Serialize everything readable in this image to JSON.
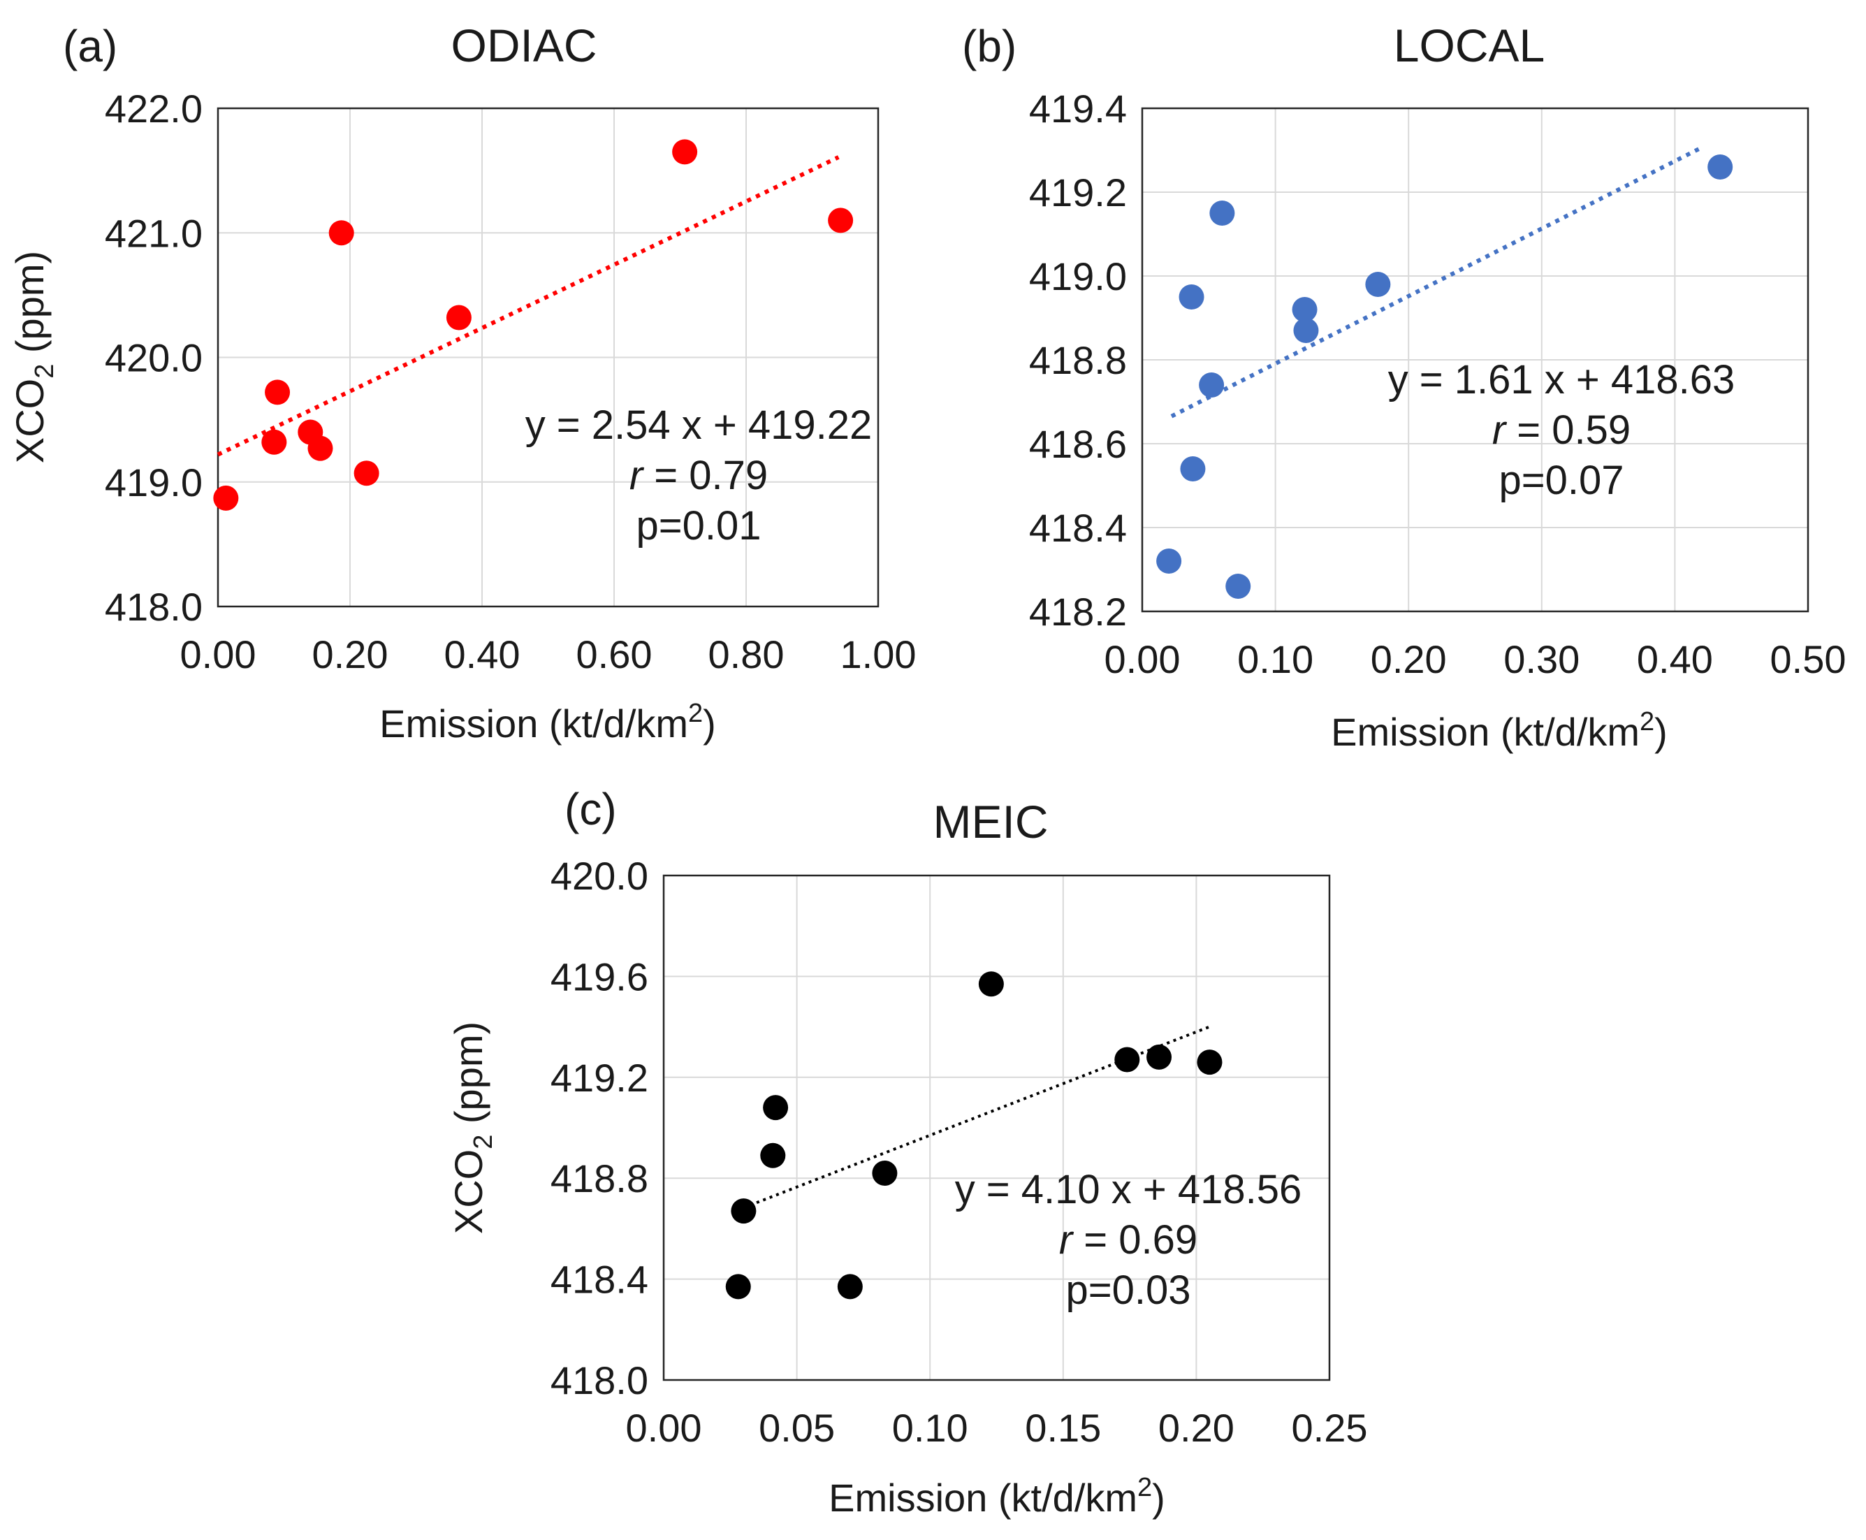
{
  "figure": {
    "panels": [
      "a",
      "b",
      "c"
    ]
  },
  "chart_data": [
    {
      "id": "a",
      "type": "scatter",
      "panel_label": "(a)",
      "title": "ODIAC",
      "xlabel_main": "Emission (kt/d/km",
      "xlabel_sup": "2",
      "xlabel_end": ")",
      "ylabel_main": "XCO",
      "ylabel_sub": "2",
      "ylabel_end": " (ppm)",
      "show_ylabel": true,
      "xlim": [
        0,
        1.0
      ],
      "ylim": [
        418.0,
        422.0
      ],
      "xticks": [
        "0.00",
        "0.20",
        "0.40",
        "0.60",
        "0.80",
        "1.00"
      ],
      "yticks": [
        "418.0",
        "419.0",
        "420.0",
        "421.0",
        "422.0"
      ],
      "grid": true,
      "color": "#ff0000",
      "points": [
        {
          "x": 0.012,
          "y": 418.87
        },
        {
          "x": 0.085,
          "y": 419.32
        },
        {
          "x": 0.09,
          "y": 419.72
        },
        {
          "x": 0.14,
          "y": 419.4
        },
        {
          "x": 0.155,
          "y": 419.27
        },
        {
          "x": 0.187,
          "y": 421.0
        },
        {
          "x": 0.225,
          "y": 419.07
        },
        {
          "x": 0.365,
          "y": 420.32
        },
        {
          "x": 0.707,
          "y": 421.65
        },
        {
          "x": 0.943,
          "y": 421.1
        }
      ],
      "trendline": {
        "slope": 2.54,
        "intercept": 419.22,
        "x_range": [
          0.0,
          0.94
        ]
      },
      "equation": "y = 2.54 x + 419.22",
      "r_symbol": "r",
      "r_value": " = 0.79",
      "p_text": "p=0.01"
    },
    {
      "id": "b",
      "type": "scatter",
      "panel_label": "(b)",
      "title": "LOCAL",
      "xlabel_main": "Emission (kt/d/km",
      "xlabel_sup": "2",
      "xlabel_end": ")",
      "show_ylabel": false,
      "xlim": [
        0,
        0.5
      ],
      "ylim": [
        418.2,
        419.4
      ],
      "xticks": [
        "0.00",
        "0.10",
        "0.20",
        "0.30",
        "0.40",
        "0.50"
      ],
      "yticks": [
        "418.2",
        "418.4",
        "418.6",
        "418.8",
        "419.0",
        "419.2",
        "419.4"
      ],
      "grid": true,
      "color": "#4472c4",
      "points": [
        {
          "x": 0.02,
          "y": 418.32
        },
        {
          "x": 0.037,
          "y": 418.95
        },
        {
          "x": 0.038,
          "y": 418.54
        },
        {
          "x": 0.052,
          "y": 418.74
        },
        {
          "x": 0.06,
          "y": 419.15
        },
        {
          "x": 0.072,
          "y": 418.26
        },
        {
          "x": 0.122,
          "y": 418.92
        },
        {
          "x": 0.123,
          "y": 418.87
        },
        {
          "x": 0.177,
          "y": 418.98
        },
        {
          "x": 0.434,
          "y": 419.26
        }
      ],
      "trendline": {
        "slope": 1.61,
        "intercept": 418.63,
        "x_range": [
          0.022,
          0.42
        ]
      },
      "equation": "y = 1.61 x + 418.63",
      "r_symbol": "r",
      "r_value": " = 0.59",
      "p_text": "p=0.07"
    },
    {
      "id": "c",
      "type": "scatter",
      "panel_label": "(c)",
      "title": "MEIC",
      "xlabel_main": "Emission (kt/d/km",
      "xlabel_sup": "2",
      "xlabel_end": ")",
      "ylabel_main": "XCO",
      "ylabel_sub": "2",
      "ylabel_end": " (ppm)",
      "show_ylabel": true,
      "xlim": [
        0,
        0.25
      ],
      "ylim": [
        418.0,
        420.0
      ],
      "xticks": [
        "0.00",
        "0.05",
        "0.10",
        "0.15",
        "0.20",
        "0.25"
      ],
      "yticks": [
        "418.0",
        "418.4",
        "418.8",
        "419.2",
        "419.6",
        "420.0"
      ],
      "grid": true,
      "color": "#000000",
      "points": [
        {
          "x": 0.028,
          "y": 418.37
        },
        {
          "x": 0.03,
          "y": 418.67
        },
        {
          "x": 0.041,
          "y": 418.89
        },
        {
          "x": 0.042,
          "y": 419.08
        },
        {
          "x": 0.07,
          "y": 418.37
        },
        {
          "x": 0.083,
          "y": 418.82
        },
        {
          "x": 0.123,
          "y": 419.57
        },
        {
          "x": 0.174,
          "y": 419.27
        },
        {
          "x": 0.186,
          "y": 419.28
        },
        {
          "x": 0.205,
          "y": 419.26
        }
      ],
      "trendline": {
        "slope": 4.1,
        "intercept": 418.56,
        "x_range": [
          0.03,
          0.205
        ]
      },
      "equation": "y = 4.10 x + 418.56",
      "r_symbol": "r",
      "r_value": " = 0.69",
      "p_text": "p=0.03"
    }
  ]
}
